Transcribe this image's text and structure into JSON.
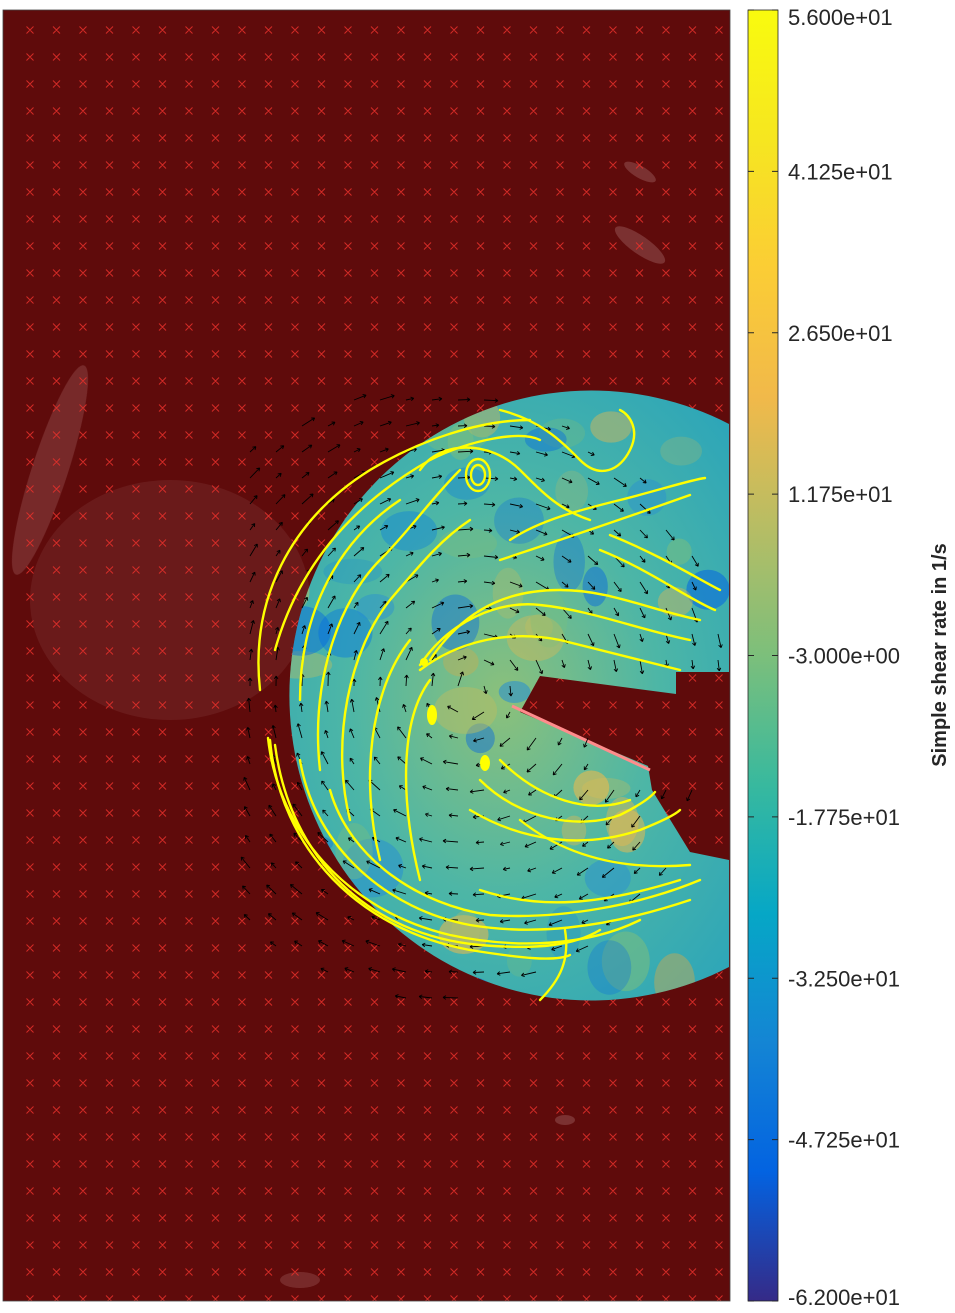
{
  "chart_data": {
    "type": "heatmap",
    "description_units": "1/s",
    "colorbar": {
      "label": "Simple shear rate in 1/s",
      "colormap": "parula",
      "range": [
        -62,
        56
      ],
      "ticks": [
        56,
        41.25,
        26.5,
        11.75,
        -3,
        -17.75,
        -32.5,
        -47.25,
        -62
      ],
      "tick_labels": [
        "5.600e+01",
        "4.125e+01",
        "2.650e+01",
        "1.175e+01",
        "-3.000e+00",
        "-1.775e+01",
        "-3.250e+01",
        "-4.725e+01",
        "-6.200e+01"
      ]
    },
    "overlays": [
      "masked region (dark red) with red x markers",
      "velocity vectors (black arrows)",
      "streamlines (yellow)"
    ],
    "colors": {
      "mask": "#5f0b0b",
      "mask_marker": "#e8322c",
      "streamline": "#ffff00",
      "vector": "#000000"
    }
  }
}
